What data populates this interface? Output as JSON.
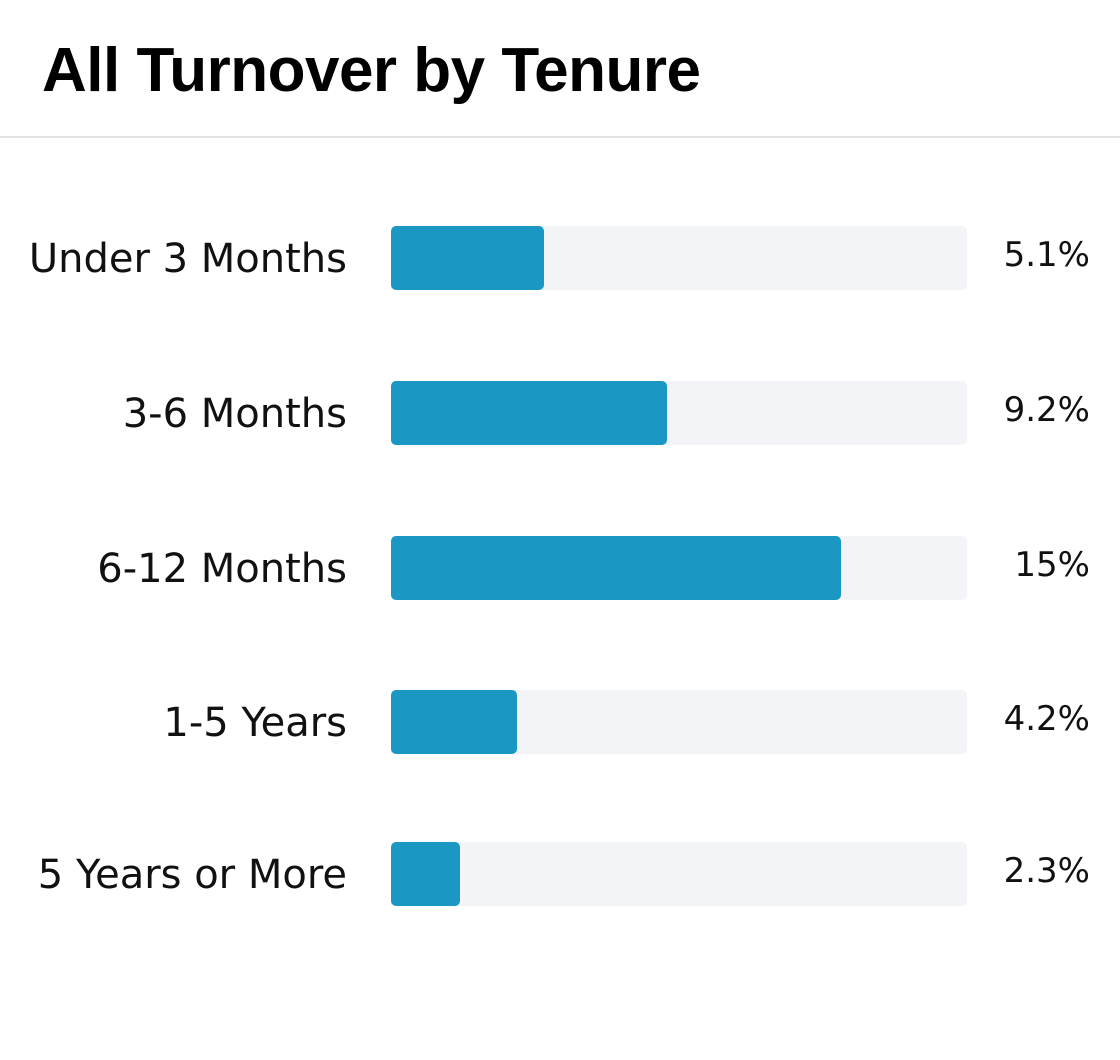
{
  "title": "All Turnover by Tenure",
  "colors": {
    "bar": "#1a98c3",
    "track": "#f3f4f8",
    "divider": "#e3e3e3"
  },
  "chart_data": {
    "type": "bar",
    "orientation": "horizontal",
    "title": "All Turnover by Tenure",
    "xlabel": "",
    "ylabel": "",
    "grid": false,
    "legend": "none",
    "categories": [
      "Under 3 Months",
      "3-6 Months",
      "6-12 Months",
      "1-5 Years",
      "5 Years or More"
    ],
    "values": [
      5.1,
      9.2,
      15,
      4.2,
      2.3
    ],
    "value_labels": [
      "5.1%",
      "9.2%",
      "15%",
      "4.2%",
      "2.3%"
    ],
    "xlim": [
      0,
      19.2
    ]
  }
}
